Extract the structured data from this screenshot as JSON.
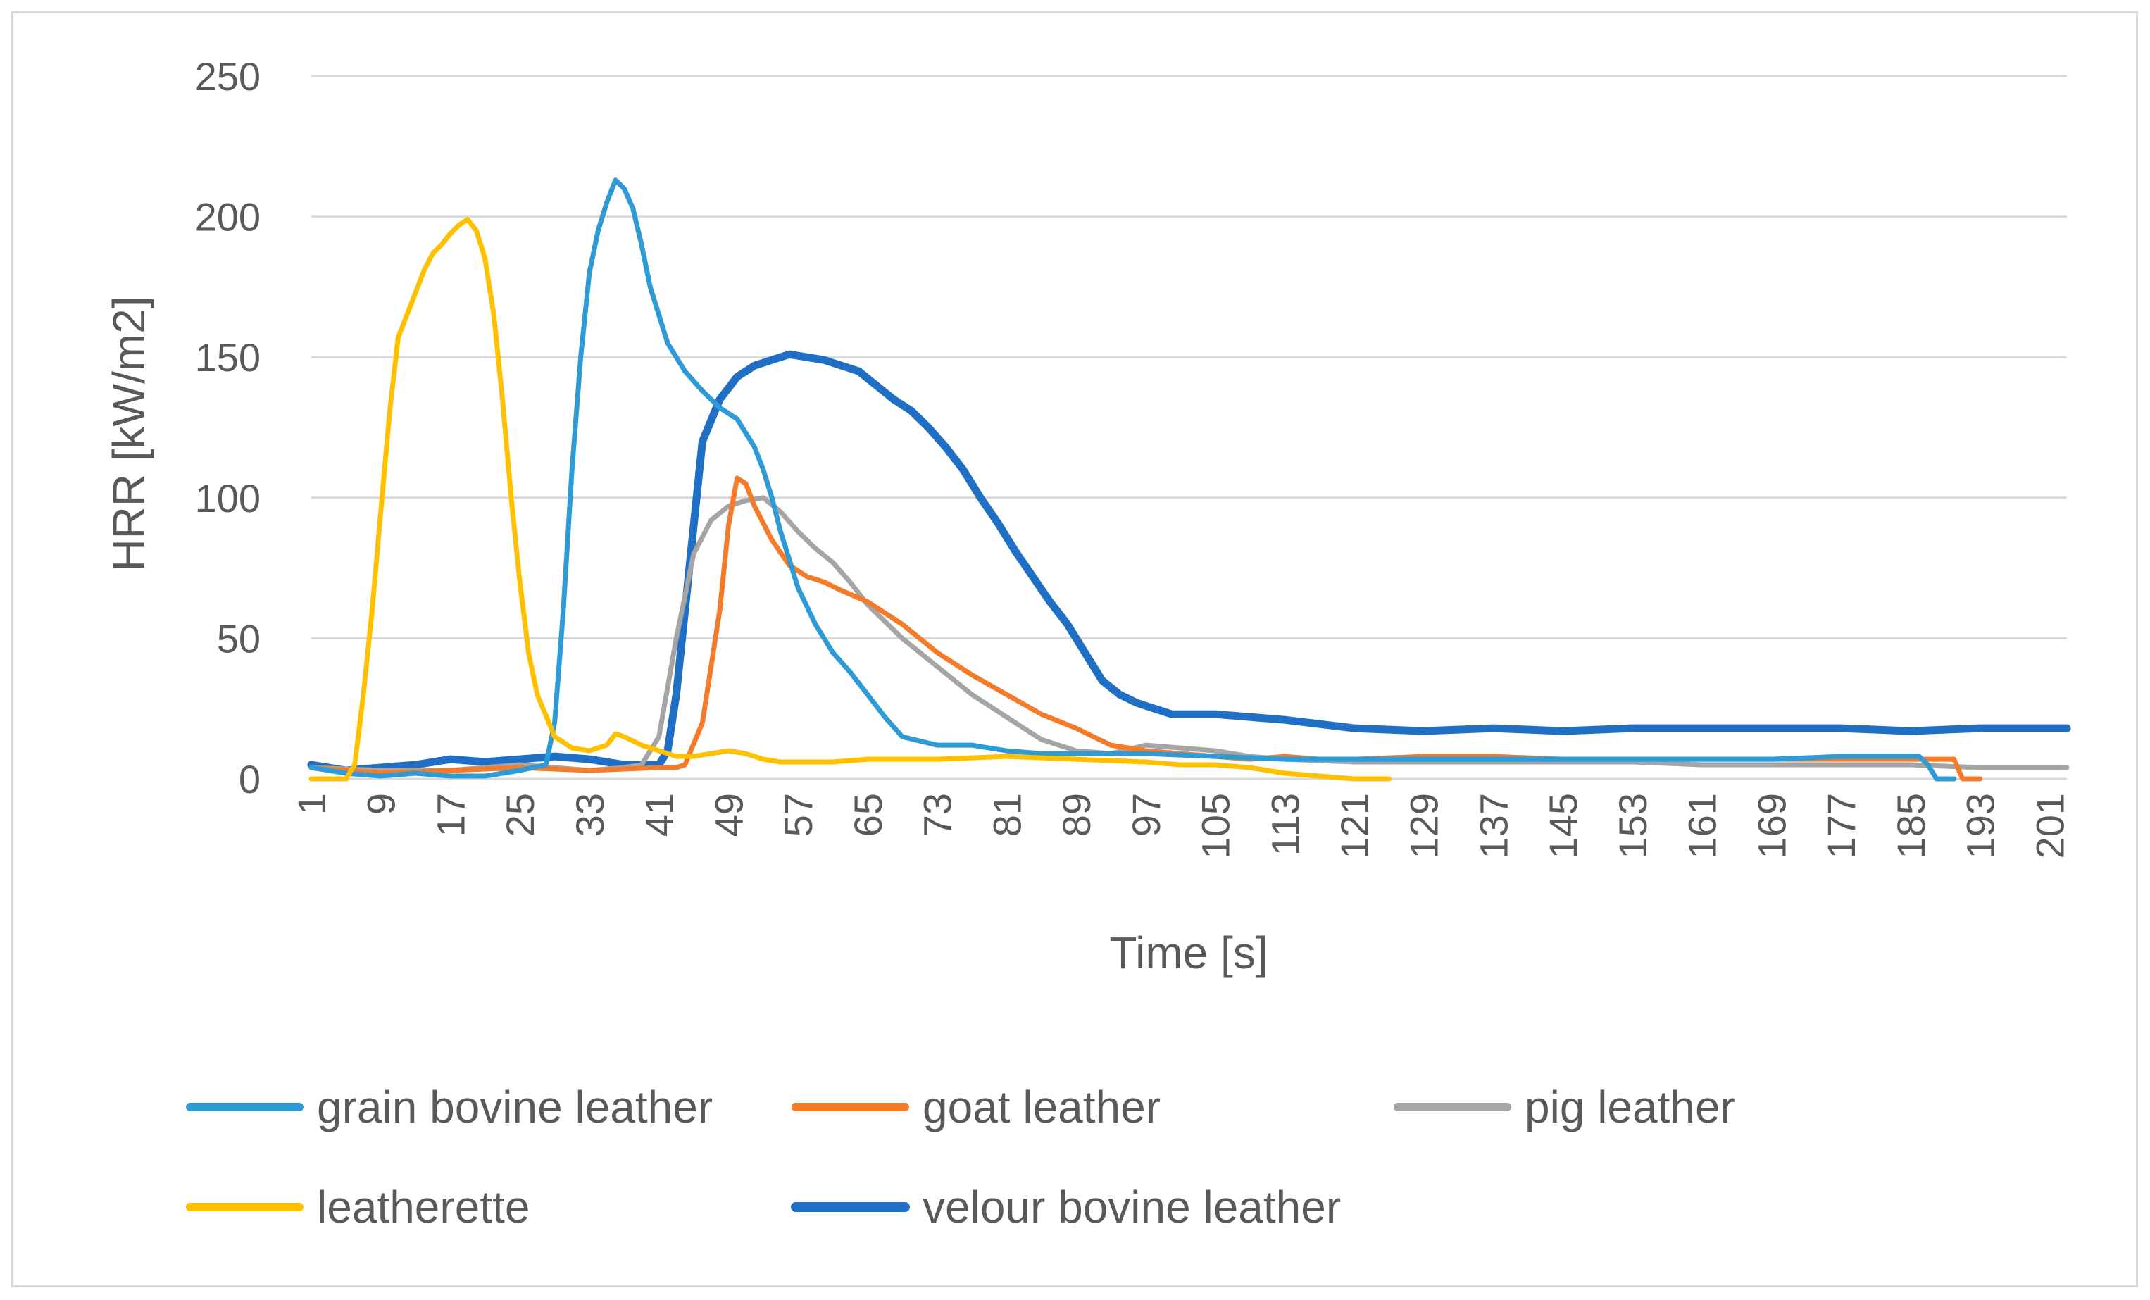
{
  "chart_data": {
    "type": "line",
    "title": "",
    "xlabel": "Time [s]",
    "ylabel": "HRR [kW/m2]",
    "xlim": [
      1,
      203
    ],
    "ylim": [
      0,
      250
    ],
    "grid": true,
    "legend_position": "bottom",
    "x_tick_labels": [
      "1",
      "9",
      "17",
      "25",
      "33",
      "41",
      "49",
      "57",
      "65",
      "73",
      "81",
      "89",
      "97",
      "105",
      "113",
      "121",
      "129",
      "137",
      "145",
      "153",
      "161",
      "169",
      "177",
      "185",
      "193",
      "201"
    ],
    "y_tick_labels": [
      "0",
      "50",
      "100",
      "150",
      "200",
      "250"
    ],
    "series": [
      {
        "name": "grain bovine leather",
        "color": "#2E9BD6",
        "points": [
          [
            1,
            4
          ],
          [
            5,
            2
          ],
          [
            9,
            1
          ],
          [
            13,
            2
          ],
          [
            17,
            1
          ],
          [
            21,
            1
          ],
          [
            25,
            3
          ],
          [
            28,
            5
          ],
          [
            29,
            20
          ],
          [
            30,
            60
          ],
          [
            31,
            110
          ],
          [
            32,
            150
          ],
          [
            33,
            180
          ],
          [
            34,
            195
          ],
          [
            35,
            205
          ],
          [
            36,
            213
          ],
          [
            37,
            210
          ],
          [
            38,
            203
          ],
          [
            39,
            190
          ],
          [
            40,
            175
          ],
          [
            41,
            165
          ],
          [
            42,
            155
          ],
          [
            44,
            145
          ],
          [
            46,
            138
          ],
          [
            48,
            132
          ],
          [
            50,
            128
          ],
          [
            51,
            123
          ],
          [
            52,
            118
          ],
          [
            53,
            110
          ],
          [
            54,
            100
          ],
          [
            55,
            88
          ],
          [
            56,
            78
          ],
          [
            57,
            68
          ],
          [
            59,
            55
          ],
          [
            61,
            45
          ],
          [
            63,
            38
          ],
          [
            65,
            30
          ],
          [
            67,
            22
          ],
          [
            69,
            15
          ],
          [
            73,
            12
          ],
          [
            77,
            12
          ],
          [
            81,
            10
          ],
          [
            85,
            9
          ],
          [
            89,
            9
          ],
          [
            97,
            9
          ],
          [
            105,
            8
          ],
          [
            113,
            7
          ],
          [
            121,
            7
          ],
          [
            129,
            7
          ],
          [
            137,
            7
          ],
          [
            145,
            7
          ],
          [
            153,
            7
          ],
          [
            161,
            7
          ],
          [
            169,
            7
          ],
          [
            177,
            8
          ],
          [
            185,
            8
          ],
          [
            186,
            8
          ],
          [
            187,
            5
          ],
          [
            188,
            0
          ],
          [
            190,
            0
          ]
        ]
      },
      {
        "name": "goat leather",
        "color": "#F47B2A",
        "points": [
          [
            1,
            4
          ],
          [
            9,
            2
          ],
          [
            17,
            3
          ],
          [
            25,
            4
          ],
          [
            33,
            3
          ],
          [
            41,
            4
          ],
          [
            43,
            4
          ],
          [
            44,
            5
          ],
          [
            46,
            20
          ],
          [
            48,
            60
          ],
          [
            49,
            90
          ],
          [
            50,
            107
          ],
          [
            51,
            105
          ],
          [
            52,
            97
          ],
          [
            54,
            85
          ],
          [
            56,
            76
          ],
          [
            58,
            72
          ],
          [
            60,
            70
          ],
          [
            62,
            67
          ],
          [
            65,
            63
          ],
          [
            69,
            55
          ],
          [
            73,
            45
          ],
          [
            77,
            37
          ],
          [
            81,
            30
          ],
          [
            85,
            23
          ],
          [
            89,
            18
          ],
          [
            93,
            12
          ],
          [
            97,
            10
          ],
          [
            101,
            9
          ],
          [
            105,
            8
          ],
          [
            109,
            7
          ],
          [
            113,
            8
          ],
          [
            117,
            7
          ],
          [
            121,
            7
          ],
          [
            129,
            8
          ],
          [
            137,
            8
          ],
          [
            145,
            7
          ],
          [
            153,
            7
          ],
          [
            161,
            7
          ],
          [
            169,
            7
          ],
          [
            177,
            7
          ],
          [
            185,
            7
          ],
          [
            189,
            7
          ],
          [
            190,
            7
          ],
          [
            191,
            0
          ],
          [
            193,
            0
          ]
        ]
      },
      {
        "name": "pig leather",
        "color": "#A5A5A5",
        "points": [
          [
            1,
            4
          ],
          [
            9,
            3
          ],
          [
            17,
            3
          ],
          [
            25,
            5
          ],
          [
            29,
            4
          ],
          [
            33,
            3
          ],
          [
            37,
            4
          ],
          [
            39,
            5
          ],
          [
            41,
            15
          ],
          [
            43,
            50
          ],
          [
            45,
            80
          ],
          [
            47,
            92
          ],
          [
            49,
            97
          ],
          [
            51,
            99
          ],
          [
            53,
            100
          ],
          [
            55,
            95
          ],
          [
            57,
            88
          ],
          [
            59,
            82
          ],
          [
            61,
            77
          ],
          [
            63,
            70
          ],
          [
            65,
            62
          ],
          [
            69,
            50
          ],
          [
            73,
            40
          ],
          [
            77,
            30
          ],
          [
            81,
            22
          ],
          [
            85,
            14
          ],
          [
            89,
            10
          ],
          [
            93,
            9
          ],
          [
            97,
            12
          ],
          [
            101,
            11
          ],
          [
            105,
            10
          ],
          [
            109,
            8
          ],
          [
            113,
            7
          ],
          [
            121,
            6
          ],
          [
            129,
            6
          ],
          [
            137,
            6
          ],
          [
            145,
            6
          ],
          [
            153,
            6
          ],
          [
            161,
            5
          ],
          [
            169,
            5
          ],
          [
            177,
            5
          ],
          [
            185,
            5
          ],
          [
            193,
            4
          ],
          [
            201,
            4
          ],
          [
            203,
            4
          ]
        ]
      },
      {
        "name": "leatherette",
        "color": "#FFC000",
        "points": [
          [
            1,
            0
          ],
          [
            5,
            0
          ],
          [
            6,
            5
          ],
          [
            7,
            30
          ],
          [
            8,
            60
          ],
          [
            9,
            95
          ],
          [
            10,
            130
          ],
          [
            11,
            157
          ],
          [
            12,
            165
          ],
          [
            13,
            173
          ],
          [
            14,
            181
          ],
          [
            15,
            187
          ],
          [
            16,
            190
          ],
          [
            17,
            194
          ],
          [
            18,
            197
          ],
          [
            19,
            199
          ],
          [
            20,
            195
          ],
          [
            21,
            185
          ],
          [
            22,
            165
          ],
          [
            23,
            135
          ],
          [
            24,
            100
          ],
          [
            25,
            70
          ],
          [
            26,
            45
          ],
          [
            27,
            30
          ],
          [
            29,
            15
          ],
          [
            31,
            11
          ],
          [
            33,
            10
          ],
          [
            35,
            12
          ],
          [
            36,
            16
          ],
          [
            37,
            15
          ],
          [
            39,
            12
          ],
          [
            41,
            10
          ],
          [
            43,
            8
          ],
          [
            45,
            8
          ],
          [
            47,
            9
          ],
          [
            49,
            10
          ],
          [
            51,
            9
          ],
          [
            53,
            7
          ],
          [
            55,
            6
          ],
          [
            57,
            6
          ],
          [
            61,
            6
          ],
          [
            65,
            7
          ],
          [
            73,
            7
          ],
          [
            81,
            8
          ],
          [
            89,
            7
          ],
          [
            97,
            6
          ],
          [
            101,
            5
          ],
          [
            105,
            5
          ],
          [
            109,
            4
          ],
          [
            113,
            2
          ],
          [
            117,
            1
          ],
          [
            121,
            0
          ],
          [
            125,
            0
          ]
        ]
      },
      {
        "name": "velour bovine leather",
        "color": "#1F6FC5",
        "points": [
          [
            1,
            5
          ],
          [
            5,
            3
          ],
          [
            9,
            4
          ],
          [
            13,
            5
          ],
          [
            17,
            7
          ],
          [
            21,
            6
          ],
          [
            25,
            7
          ],
          [
            29,
            8
          ],
          [
            33,
            7
          ],
          [
            37,
            5
          ],
          [
            41,
            5
          ],
          [
            42,
            10
          ],
          [
            43,
            30
          ],
          [
            44,
            60
          ],
          [
            45,
            90
          ],
          [
            46,
            120
          ],
          [
            48,
            135
          ],
          [
            50,
            143
          ],
          [
            52,
            147
          ],
          [
            54,
            149
          ],
          [
            56,
            151
          ],
          [
            58,
            150
          ],
          [
            60,
            149
          ],
          [
            62,
            147
          ],
          [
            64,
            145
          ],
          [
            66,
            140
          ],
          [
            68,
            135
          ],
          [
            70,
            131
          ],
          [
            72,
            125
          ],
          [
            74,
            118
          ],
          [
            76,
            110
          ],
          [
            78,
            100
          ],
          [
            80,
            91
          ],
          [
            82,
            81
          ],
          [
            84,
            72
          ],
          [
            86,
            63
          ],
          [
            88,
            55
          ],
          [
            90,
            45
          ],
          [
            92,
            35
          ],
          [
            94,
            30
          ],
          [
            96,
            27
          ],
          [
            98,
            25
          ],
          [
            100,
            23
          ],
          [
            105,
            23
          ],
          [
            113,
            21
          ],
          [
            121,
            18
          ],
          [
            129,
            17
          ],
          [
            137,
            18
          ],
          [
            145,
            17
          ],
          [
            153,
            18
          ],
          [
            161,
            18
          ],
          [
            169,
            18
          ],
          [
            177,
            18
          ],
          [
            185,
            17
          ],
          [
            193,
            18
          ],
          [
            201,
            18
          ],
          [
            203,
            18
          ]
        ]
      }
    ]
  }
}
